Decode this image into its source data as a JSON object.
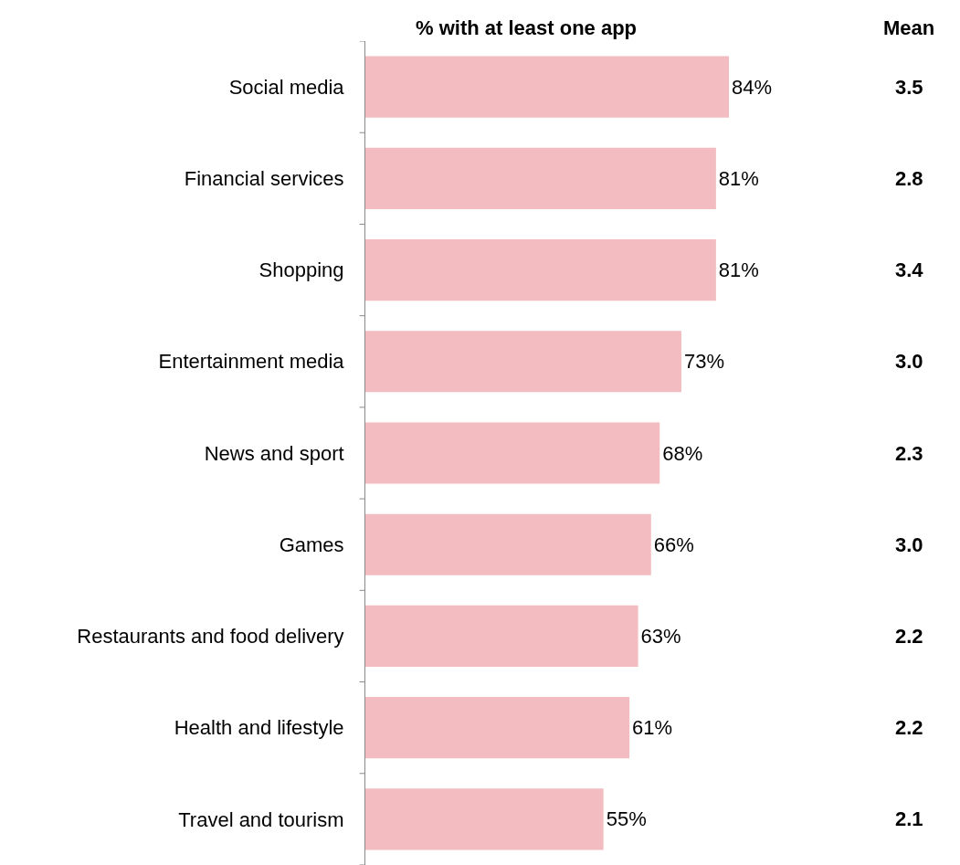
{
  "chart_data": {
    "type": "bar",
    "orientation": "horizontal",
    "title": "% with at least one app",
    "categories": [
      "Social media",
      "Financial services",
      "Shopping",
      "Entertainment media",
      "News and sport",
      "Games",
      "Restaurants and food delivery",
      "Health and lifestyle",
      "Travel and tourism"
    ],
    "values": [
      84,
      81,
      81,
      73,
      68,
      66,
      63,
      61,
      55
    ],
    "value_labels": [
      "84%",
      "81%",
      "81%",
      "73%",
      "68%",
      "66%",
      "63%",
      "61%",
      "55%"
    ],
    "color": "#f2bcc0",
    "annotations": [
      "Mean",
      "3.5",
      "2.8",
      "3.4",
      "3.0",
      "2.3",
      "3.0",
      "2.2",
      "2.2",
      "2.1"
    ]
  }
}
